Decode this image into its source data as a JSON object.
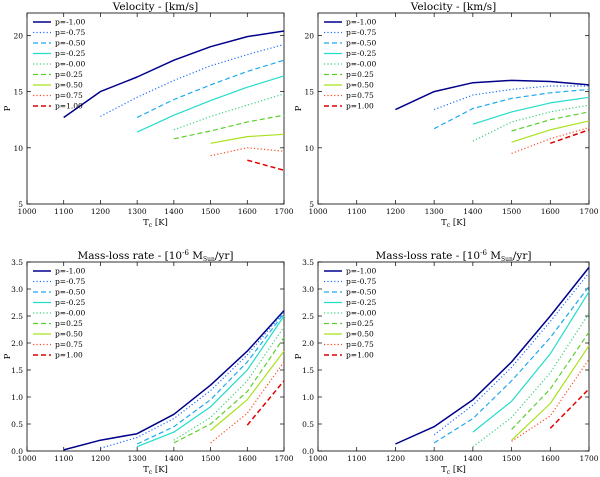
{
  "series_styles": [
    {
      "name": "p=-1.00",
      "color": "#00008b",
      "dash": "solid",
      "width": 1.5
    },
    {
      "name": "p=-0.75",
      "color": "#1e6fff",
      "dash": "dot",
      "width": 1.2
    },
    {
      "name": "p=-0.50",
      "color": "#1eaaee",
      "dash": "dash",
      "width": 1.2
    },
    {
      "name": "p=-0.25",
      "color": "#22dccc",
      "dash": "solid",
      "width": 1.2
    },
    {
      "name": "p=-0.00",
      "color": "#3ad07a",
      "dash": "dot",
      "width": 1.2
    },
    {
      "name": "p=0.25",
      "color": "#5cd02e",
      "dash": "dash",
      "width": 1.2
    },
    {
      "name": "p=0.50",
      "color": "#a8e21c",
      "dash": "solid",
      "width": 1.2
    },
    {
      "name": "p=0.75",
      "color": "#ff4a20",
      "dash": "dot",
      "width": 1.2
    },
    {
      "name": "p=1.00",
      "color": "#e00000",
      "dash": "dash",
      "width": 1.5
    }
  ],
  "chart_data": [
    {
      "type": "line",
      "title": "Velocity - [km/s]",
      "xlabel": "T",
      "xlabel_sub": "c",
      "xlabel_unit": " [K]",
      "ylabel": "P",
      "xlim": [
        1000,
        1700
      ],
      "ylim": [
        5,
        22
      ],
      "xticks": [
        1000,
        1100,
        1200,
        1300,
        1400,
        1500,
        1600,
        1700
      ],
      "yticks": [
        5,
        10,
        15,
        20
      ],
      "ytick_labels": [
        "5",
        "10",
        "15",
        "20"
      ],
      "series": [
        {
          "name": "p=-1.00",
          "x": [
            1100,
            1200,
            1300,
            1400,
            1500,
            1600,
            1700
          ],
          "values": [
            12.7,
            15.0,
            16.3,
            17.8,
            19.0,
            19.9,
            20.4
          ]
        },
        {
          "name": "p=-0.75",
          "x": [
            1200,
            1300,
            1400,
            1500,
            1600,
            1700
          ],
          "values": [
            12.8,
            14.5,
            16.0,
            17.3,
            18.3,
            19.2
          ]
        },
        {
          "name": "p=-0.50",
          "x": [
            1300,
            1400,
            1500,
            1600,
            1700
          ],
          "values": [
            12.7,
            14.3,
            15.6,
            16.8,
            17.8
          ]
        },
        {
          "name": "p=-0.25",
          "x": [
            1300,
            1400,
            1500,
            1600,
            1700
          ],
          "values": [
            11.4,
            12.9,
            14.2,
            15.4,
            16.4
          ]
        },
        {
          "name": "p=-0.00",
          "x": [
            1400,
            1500,
            1600,
            1700
          ],
          "values": [
            11.6,
            12.8,
            13.8,
            14.8
          ]
        },
        {
          "name": "p=0.25",
          "x": [
            1400,
            1500,
            1600,
            1700
          ],
          "values": [
            10.8,
            11.5,
            12.3,
            12.9
          ]
        },
        {
          "name": "p=0.50",
          "x": [
            1500,
            1600,
            1700
          ],
          "values": [
            10.4,
            11.0,
            11.2
          ]
        },
        {
          "name": "p=0.75",
          "x": [
            1500,
            1600,
            1700
          ],
          "values": [
            9.3,
            10.0,
            9.7
          ]
        },
        {
          "name": "p=1.00",
          "x": [
            1600,
            1700
          ],
          "values": [
            8.9,
            8.0
          ]
        }
      ]
    },
    {
      "type": "line",
      "title": "Velocity - [km/s]",
      "xlabel": "T",
      "xlabel_sub": "c",
      "xlabel_unit": " [K]",
      "ylabel": "P",
      "xlim": [
        1000,
        1700
      ],
      "ylim": [
        5,
        22
      ],
      "xticks": [
        1000,
        1100,
        1200,
        1300,
        1400,
        1500,
        1600,
        1700
      ],
      "yticks": [
        5,
        10,
        15,
        20
      ],
      "ytick_labels": [
        "5",
        "10",
        "15",
        "20"
      ],
      "series": [
        {
          "name": "p=-1.00",
          "x": [
            1200,
            1300,
            1400,
            1500,
            1600,
            1700
          ],
          "values": [
            13.4,
            15.0,
            15.8,
            16.0,
            15.9,
            15.6
          ]
        },
        {
          "name": "p=-0.75",
          "x": [
            1300,
            1400,
            1500,
            1600,
            1700
          ],
          "values": [
            13.4,
            14.7,
            15.2,
            15.5,
            15.5
          ]
        },
        {
          "name": "p=-0.50",
          "x": [
            1300,
            1400,
            1500,
            1600,
            1700
          ],
          "values": [
            11.7,
            13.5,
            14.4,
            14.9,
            15.2
          ]
        },
        {
          "name": "p=-0.25",
          "x": [
            1400,
            1500,
            1600,
            1700
          ],
          "values": [
            12.1,
            13.2,
            14.0,
            14.5
          ]
        },
        {
          "name": "p=-0.00",
          "x": [
            1400,
            1500,
            1600,
            1700
          ],
          "values": [
            10.6,
            12.3,
            13.2,
            13.8
          ]
        },
        {
          "name": "p=0.25",
          "x": [
            1500,
            1600,
            1700
          ],
          "values": [
            11.5,
            12.5,
            13.2
          ]
        },
        {
          "name": "p=0.50",
          "x": [
            1500,
            1600,
            1700
          ],
          "values": [
            10.5,
            11.6,
            12.4
          ]
        },
        {
          "name": "p=0.75",
          "x": [
            1500,
            1600,
            1700
          ],
          "values": [
            9.5,
            10.8,
            11.8
          ]
        },
        {
          "name": "p=1.00",
          "x": [
            1600,
            1700
          ],
          "values": [
            10.4,
            11.6
          ]
        }
      ]
    },
    {
      "type": "line",
      "title": "Mass-loss rate - [10",
      "title_sup": "-6",
      "title_mid": " M",
      "title_sub": "Sun",
      "title_end": "/yr]",
      "xlabel": "T",
      "xlabel_sub": "c",
      "xlabel_unit": " [K]",
      "ylabel": "P",
      "xlim": [
        1000,
        1700
      ],
      "ylim": [
        0,
        3.5
      ],
      "xticks": [
        1000,
        1100,
        1200,
        1300,
        1400,
        1500,
        1600,
        1700
      ],
      "yticks": [
        0,
        0.5,
        1.0,
        1.5,
        2.0,
        2.5,
        3.0,
        3.5
      ],
      "ytick_labels": [
        "0.0",
        "0.5",
        "1.0",
        "1.5",
        "2.0",
        "2.5",
        "3.0",
        "3.5"
      ],
      "series": [
        {
          "name": "p=-1.00",
          "x": [
            1100,
            1200,
            1300,
            1400,
            1500,
            1600,
            1700
          ],
          "values": [
            0.02,
            0.2,
            0.32,
            0.68,
            1.22,
            1.85,
            2.6
          ]
        },
        {
          "name": "p=-0.75",
          "x": [
            1200,
            1300,
            1400,
            1500,
            1600,
            1700
          ],
          "values": [
            0.05,
            0.25,
            0.6,
            1.12,
            1.78,
            2.58
          ]
        },
        {
          "name": "p=-0.50",
          "x": [
            1300,
            1400,
            1500,
            1600,
            1700
          ],
          "values": [
            0.13,
            0.45,
            0.95,
            1.65,
            2.55
          ]
        },
        {
          "name": "p=-0.25",
          "x": [
            1300,
            1400,
            1500,
            1600,
            1700
          ],
          "values": [
            0.08,
            0.35,
            0.82,
            1.5,
            2.5
          ]
        },
        {
          "name": "p=-0.00",
          "x": [
            1400,
            1500,
            1600,
            1700
          ],
          "values": [
            0.2,
            0.62,
            1.3,
            2.3
          ]
        },
        {
          "name": "p=0.25",
          "x": [
            1400,
            1500,
            1600,
            1700
          ],
          "values": [
            0.15,
            0.5,
            1.1,
            2.1
          ]
        },
        {
          "name": "p=0.50",
          "x": [
            1500,
            1600,
            1700
          ],
          "values": [
            0.38,
            0.95,
            1.85
          ]
        },
        {
          "name": "p=0.75",
          "x": [
            1500,
            1600,
            1700
          ],
          "values": [
            0.15,
            0.7,
            1.65
          ]
        },
        {
          "name": "p=1.00",
          "x": [
            1600,
            1700
          ],
          "values": [
            0.48,
            1.3
          ]
        }
      ]
    },
    {
      "type": "line",
      "title": "Mass-loss rate - [10",
      "title_sup": "-6",
      "title_mid": " M",
      "title_sub": "Sun",
      "title_end": "/yr]",
      "xlabel": "T",
      "xlabel_sub": "c",
      "xlabel_unit": " [K]",
      "ylabel": "P",
      "xlim": [
        1000,
        1700
      ],
      "ylim": [
        0,
        3.5
      ],
      "xticks": [
        1000,
        1100,
        1200,
        1300,
        1400,
        1500,
        1600,
        1700
      ],
      "yticks": [
        0,
        0.5,
        1.0,
        1.5,
        2.0,
        2.5,
        3.0,
        3.5
      ],
      "ytick_labels": [
        "0.0",
        "0.5",
        "1.0",
        "1.5",
        "2.0",
        "2.5",
        "3.0",
        "3.5"
      ],
      "series": [
        {
          "name": "p=-1.00",
          "x": [
            1200,
            1300,
            1400,
            1500,
            1600,
            1700
          ],
          "values": [
            0.13,
            0.45,
            0.95,
            1.65,
            2.5,
            3.4
          ]
        },
        {
          "name": "p=-0.75",
          "x": [
            1300,
            1400,
            1500,
            1600,
            1700
          ],
          "values": [
            0.3,
            0.85,
            1.55,
            2.4,
            3.3
          ]
        },
        {
          "name": "p=-0.50",
          "x": [
            1300,
            1400,
            1500,
            1600,
            1700
          ],
          "values": [
            0.15,
            0.6,
            1.3,
            2.1,
            3.05
          ]
        },
        {
          "name": "p=-0.25",
          "x": [
            1400,
            1500,
            1600,
            1700
          ],
          "values": [
            0.35,
            0.92,
            1.8,
            2.95
          ]
        },
        {
          "name": "p=-0.00",
          "x": [
            1400,
            1500,
            1600,
            1700
          ],
          "values": [
            0.08,
            0.62,
            1.45,
            2.55
          ]
        },
        {
          "name": "p=0.25",
          "x": [
            1500,
            1600,
            1700
          ],
          "values": [
            0.4,
            1.15,
            2.2
          ]
        },
        {
          "name": "p=0.50",
          "x": [
            1500,
            1600,
            1700
          ],
          "values": [
            0.2,
            0.88,
            1.95
          ]
        },
        {
          "name": "p=0.75",
          "x": [
            1500,
            1600,
            1700
          ],
          "values": [
            0.18,
            0.65,
            1.7
          ]
        },
        {
          "name": "p=1.00",
          "x": [
            1600,
            1700
          ],
          "values": [
            0.42,
            1.15
          ]
        }
      ]
    }
  ]
}
